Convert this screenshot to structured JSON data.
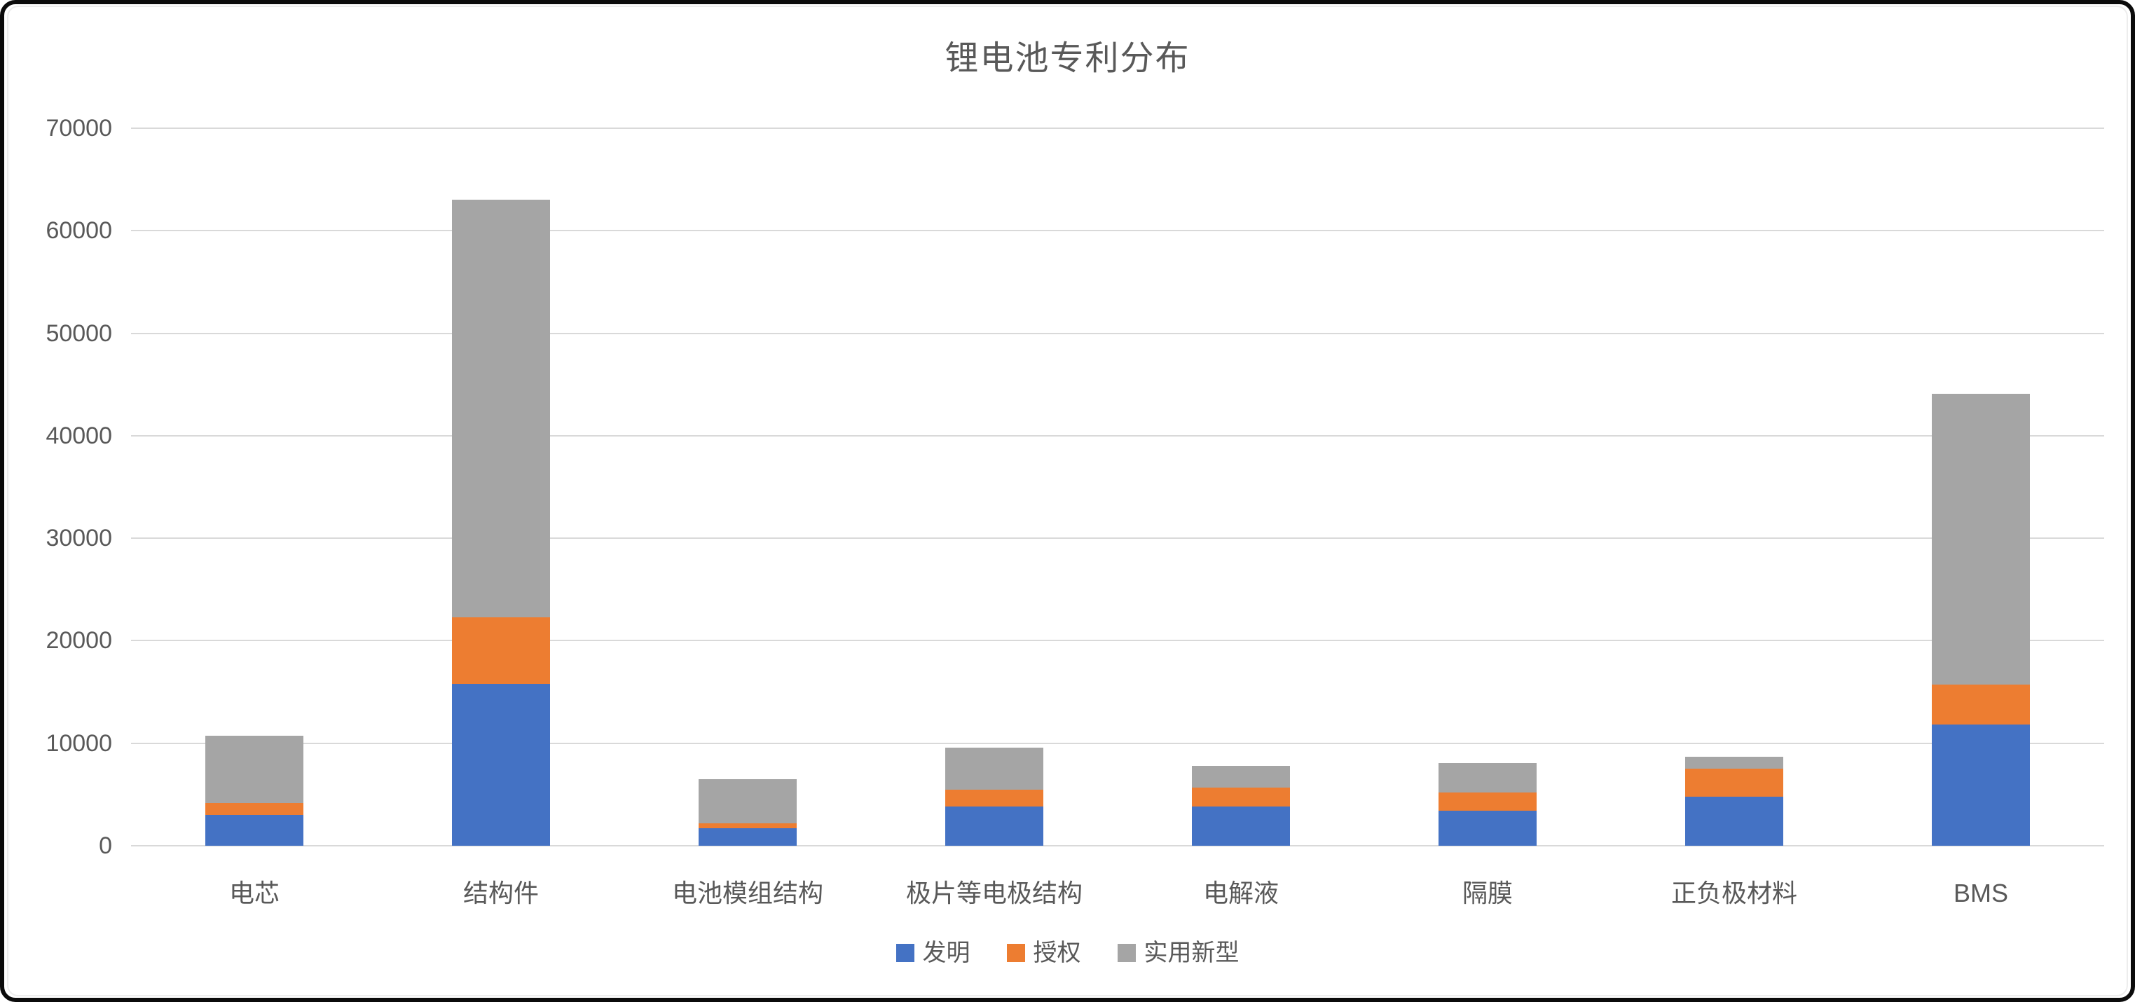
{
  "frame": {
    "border_color": "#0b0b0b",
    "background": "#ffffff"
  },
  "chart_data": {
    "type": "bar",
    "stacked": true,
    "title": "锂电池专利分布",
    "title_color": "#595959",
    "categories": [
      "电芯",
      "结构件",
      "电池模组结构",
      "极片等电极结构",
      "电解液",
      "隔膜",
      "正负极材料",
      "BMS"
    ],
    "series": [
      {
        "name": "发明",
        "color": "#4472C4",
        "values": [
          3000,
          15800,
          1700,
          3800,
          3800,
          3400,
          4800,
          11800
        ]
      },
      {
        "name": "授权",
        "color": "#ED7D31",
        "values": [
          1200,
          6500,
          500,
          1700,
          1900,
          1800,
          2700,
          3900
        ]
      },
      {
        "name": "实用新型",
        "color": "#A5A5A5",
        "values": [
          6500,
          40700,
          4300,
          4100,
          2100,
          2900,
          1200,
          28400
        ]
      }
    ],
    "totals": [
      10700,
      63000,
      6500,
      9600,
      7800,
      8100,
      8700,
      44100
    ],
    "xlabel": "",
    "ylabel": "",
    "ylim": [
      0,
      70000
    ],
    "ytick_interval": 10000,
    "yticks": [
      "0",
      "10000",
      "20000",
      "30000",
      "40000",
      "50000",
      "60000",
      "70000"
    ],
    "grid": true,
    "gridline_color": "#D9D9D9",
    "axis_label_color": "#595959",
    "legend_position": "bottom",
    "bar_width_ratio": 0.4
  }
}
